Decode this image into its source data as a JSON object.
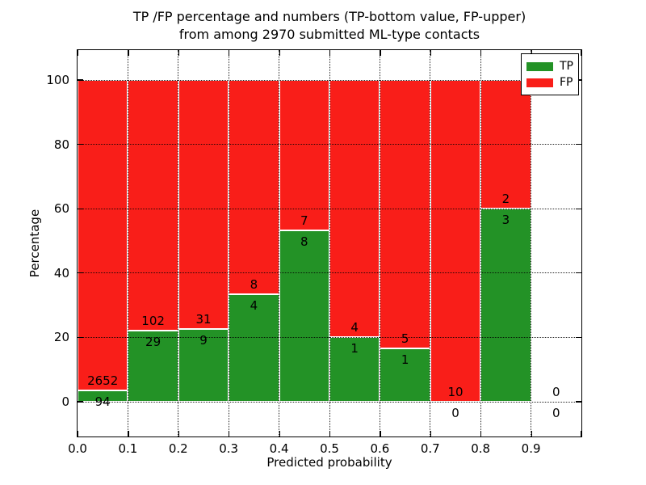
{
  "chart_data": {
    "type": "bar",
    "stacked": true,
    "unit": "percent_of_bin_total",
    "title_lines": [
      "TP /FP percentage and numbers (TP-bottom value, FP-upper)",
      "from among 2970 submitted ML-type contacts"
    ],
    "xlabel": "Predicted probability",
    "ylabel": "Percentage",
    "total_contacts_in_title": 2970,
    "bins": [
      0.0,
      0.1,
      0.2,
      0.3,
      0.4,
      0.5,
      0.6,
      0.7,
      0.8,
      0.9,
      1.0
    ],
    "bin_tick_labels": [
      "0.0",
      "0.1",
      "0.2",
      "0.3",
      "0.4",
      "0.5",
      "0.6",
      "0.7",
      "0.8",
      "0.9"
    ],
    "series": [
      {
        "name": "TP",
        "color": "#239226",
        "counts": [
          94,
          29,
          9,
          4,
          8,
          1,
          1,
          0,
          3,
          0
        ],
        "pct": [
          3.42,
          22.14,
          22.5,
          33.33,
          53.33,
          20.0,
          16.67,
          0.0,
          60.0,
          0.0
        ]
      },
      {
        "name": "FP",
        "color": "#f91e19",
        "counts": [
          2652,
          102,
          31,
          8,
          7,
          4,
          5,
          10,
          2,
          0
        ],
        "pct": [
          96.58,
          77.86,
          77.5,
          66.67,
          46.67,
          80.0,
          83.33,
          100.0,
          40.0,
          0.0
        ]
      }
    ],
    "yticks": [
      0,
      20,
      40,
      60,
      80,
      100
    ],
    "ytick_labels": [
      "0",
      "20",
      "40",
      "60",
      "80",
      "100"
    ],
    "ylim": [
      -10.8,
      109.3
    ],
    "xlim": [
      0.0,
      1.0
    ],
    "grid": "dotted",
    "legend_position": "upper right",
    "annotation_note": "FP count above TP/FP boundary, TP count below boundary"
  }
}
